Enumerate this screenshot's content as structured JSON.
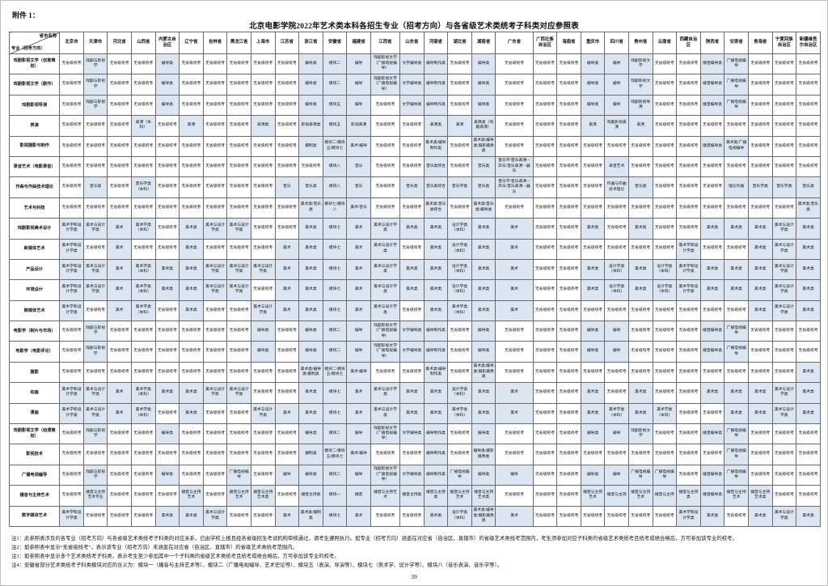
{
  "header": {
    "attachment": "附件 1：",
    "title": "北京电影学院2022年艺术类本科各招生专业（招考方向）与各省级艺术类统考子科类对应参照表"
  },
  "colors": {
    "highlight_cell": "#dbe6f2",
    "grid_line": "#6b6b6b"
  },
  "page_number": "39",
  "table": {
    "corner_top": "省市名称",
    "corner_bottom": "专业（招考方向）",
    "none_label": "无省级统考",
    "provinces": [
      "北京市",
      "天津市",
      "河北省",
      "山西省",
      "内蒙古自治区",
      "辽宁省",
      "吉林省",
      "黑龙江省",
      "上海市",
      "江苏省",
      "浙江省",
      "安徽省",
      "福建省",
      "江西省",
      "山东省",
      "河南省",
      "湖北省",
      "湖南省",
      "广东省",
      "广西壮族自治区",
      "海南省",
      "重庆市",
      "四川省",
      "贵州省",
      "云南省",
      "西藏自治区",
      "陕西省",
      "甘肃省",
      "青海省",
      "宁夏回族自治区",
      "新疆维吾尔自治区"
    ],
    "rows": [
      {
        "major": "戏剧影视文学（创意策划）",
        "cells": [
          "无省级统考",
          "戏剧与影视学",
          "无省级统考",
          "无省级统考",
          "编导类",
          "无省级统考",
          "无省级统考",
          "无省级统考",
          "无省级统考",
          "无省级统考",
          "编导类",
          "模块二",
          "编导",
          "戏剧影视文学（广播电视编导）",
          "文学编导类",
          "编导制作类",
          "无省级统考",
          "编导类",
          "无省级统考",
          "无省级统考",
          "无省级统考",
          "编导类",
          "编导",
          "戏剧影视文学",
          "无省级统考",
          "无省级统考",
          "播音编导类",
          "广播电视编导",
          "无省级统考",
          "无省级统考",
          "无省级统考"
        ]
      },
      {
        "major": "戏剧影视文学（剧作）",
        "cells": [
          "无省级统考",
          "戏剧与影视学",
          "无省级统考",
          "无省级统考",
          "编导类",
          "无省级统考",
          "无省级统考",
          "无省级统考",
          "无省级统考",
          "无省级统考",
          "编导类",
          "模块二",
          "编导",
          "戏剧影视文学（广播电视编导）",
          "文学编导类",
          "编导制作类",
          "无省级统考",
          "编导类",
          "无省级统考",
          "无省级统考",
          "无省级统考",
          "编导类",
          "编导",
          "戏剧影视文学",
          "无省级统考",
          "无省级统考",
          "播音编导类",
          "广播电视编导",
          "无省级统考",
          "无省级统考",
          "无省级统考"
        ]
      },
      {
        "major": "戏剧影视导演",
        "cells": [
          "无省级统考",
          "戏剧与影视学",
          "无省级统考",
          "无省级统考",
          "编导类",
          "无省级统考",
          "无省级统考",
          "无省级统考",
          "无省级统考",
          "无省级统考",
          "编导类",
          "模块五",
          "编导",
          "无省级统考",
          "文学编导类",
          "编导制作类",
          "无省级统考",
          "编导类",
          "无省级统考",
          "无省级统考",
          "无省级统考",
          "编导类",
          "编导",
          "戏剧影视导演",
          "无省级统考",
          "无省级统考",
          "播音编导类",
          "广播电视编导",
          "无省级统考",
          "无省级统考",
          "无省级统考"
        ]
      },
      {
        "major": "表演",
        "cells": [
          "无省级统考",
          "无省级统考",
          "无省级统考",
          "表演（本科）",
          "无省级统考",
          "表演",
          "无省级统考",
          "无省级统考",
          "表演类",
          "无省级统考",
          "影视表演类",
          "模块五",
          "影视表演",
          "无省级统考",
          "无省级统考",
          "表演类",
          "表演",
          "表演类（戏剧表演）",
          "无省级统考",
          "无省级统考",
          "无省级统考",
          "表演",
          "戏剧影视表演",
          "表演",
          "无省级统考",
          "无省级统考",
          "无省级统考",
          "无省级统考",
          "无省级统考",
          "无省级统考",
          "无省级统考"
        ]
      },
      {
        "major": "影视摄影与制作",
        "cells": [
          "无省级统考",
          "无省级统考",
          "无省级统考",
          "无省级统考",
          "无省级统考",
          "无省级统考",
          "无省级统考",
          "无省级统考",
          "无省级统考",
          "无省级统考",
          "摄制类",
          "模块二/模块五/模块七",
          "美术/编导",
          "无省级统考",
          "无省级统考",
          "美术类/编导制作类",
          "无省级统考",
          "美术类/编导类/摄影摄像类",
          "无省级统考",
          "无省级统考",
          "无省级统考",
          "无省级统考",
          "无省级统考",
          "无省级统考",
          "无省级统考",
          "无省级统考",
          "播音编导类",
          "美术类/广播电视编导",
          "无省级统考",
          "无省级统考",
          "无省级统考"
        ]
      },
      {
        "major": "录音艺术（电影录音）",
        "cells": [
          "无省级统考",
          "无省级统考",
          "无省级统考",
          "无省级统考",
          "无省级统考",
          "无省级统考",
          "无省级统考",
          "无省级统考",
          "无省级统考",
          "无省级统考",
          "无省级统考",
          "模块八",
          "音乐",
          "无省级统考",
          "无省级统考",
          "音乐类综合",
          "无省级统考",
          "音乐类",
          "音乐学/音乐表演—声乐/音乐表演—器乐",
          "无省级统考",
          "无省级统考",
          "无省级统考",
          "录音艺术",
          "无省级统考",
          "无省级统考",
          "无省级统考",
          "无省级统考",
          "无省级统考",
          "无省级统考",
          "无省级统考",
          "无省级统考"
        ]
      },
      {
        "major": "作曲与作曲技术理论",
        "cells": [
          "无省级统考",
          "音乐类",
          "无省级统考",
          "音乐学类（本科）",
          "无省级统考",
          "无省级统考",
          "无省级统考",
          "无省级统考",
          "无省级统考",
          "音乐",
          "音乐类",
          "模块八",
          "音乐",
          "无省级统考",
          "音乐类",
          "音乐类综合",
          "音乐学类",
          "音乐类",
          "音乐学/音乐表演—声乐/音乐表演—器乐",
          "无省级统考",
          "无省级统考",
          "无省级统考",
          "作曲与作曲技术理论",
          "音乐类",
          "无省级统考",
          "无省级统考",
          "无省级统考",
          "理论作曲",
          "音乐学类",
          "音乐学类",
          "音乐类"
        ]
      },
      {
        "major": "艺术与科技",
        "cells": [
          "无省级统考",
          "无省级统考",
          "无省级统考",
          "无省级统考",
          "无省级统考",
          "无省级统考",
          "无省级统考",
          "无省级统考",
          "无省级统考",
          "无省级统考",
          "美术类/音乐类",
          "模块七/模块八",
          "美术/音乐",
          "无省级统考",
          "无省级统考",
          "美术类/音乐类综合",
          "无省级统考",
          "美术类/音乐类/编导类",
          "无省级统考",
          "无省级统考",
          "无省级统考",
          "无省级统考",
          "无省级统考",
          "无省级统考",
          "无省级统考",
          "无省级统考",
          "无省级统考",
          "无省级统考",
          "无省级统考",
          "无省级统考",
          "美术类/音乐类"
        ]
      },
      {
        "major": "戏剧影视美术设计",
        "cells": [
          "美术学和设计学类",
          "美术与设计学类",
          "美术",
          "美术学类（本科）",
          "无省级统考",
          "美术类",
          "美术与设计学类",
          "美术与设计学类",
          "无省级统考",
          "无省级统考",
          "美术类",
          "模块七",
          "美术",
          "美术与设计学类",
          "美术类",
          "美术类",
          "设计学类（本科）",
          "美术类",
          "美术",
          "无省级统考",
          "无省级统考",
          "美术类",
          "无省级统考",
          "美术类",
          "无省级统考",
          "无省级统考",
          "美术类",
          "美术类",
          "美术类",
          "美术与设计学类",
          "美术类"
        ]
      },
      {
        "major": "新媒体艺术",
        "cells": [
          "美术学和设计学类",
          "无省级统考",
          "美术",
          "无省级统考",
          "无省级统考",
          "美术类",
          "无省级统考",
          "无省级统考",
          "无省级统考",
          "美术",
          "美术类",
          "模块七",
          "美术",
          "美术与设计学类",
          "无省级统考",
          "美术类",
          "设计学类（本科）",
          "美术类",
          "美术",
          "无省级统考",
          "无省级统考",
          "无省级统考",
          "无省级统考",
          "无省级统考",
          "无省级统考",
          "美术学和设计学类",
          "无省级统考",
          "无省级统考",
          "美术类",
          "美术与设计学类",
          "美术类"
        ]
      },
      {
        "major": "产品设计",
        "cells": [
          "美术学和设计学类",
          "美术与设计学类",
          "美术",
          "美术学类（本科）",
          "美术类",
          "美术类",
          "美术与设计学类",
          "美术与设计学类",
          "美术与设计学类",
          "美术",
          "美术类",
          "模块七",
          "美术",
          "美术与设计学类",
          "美术类",
          "美术类",
          "设计学类（本科）",
          "美术类",
          "美术",
          "无省级统考",
          "无省级统考",
          "美术类",
          "设计学类（本科）",
          "美术类",
          "设计学类（本科）",
          "美术学和设计学类",
          "美术类",
          "美术类",
          "美术类",
          "美术与设计学类",
          "美术类"
        ]
      },
      {
        "major": "环境设计",
        "cells": [
          "美术学和设计学类",
          "美术与设计学类",
          "美术",
          "美术学类（本科）",
          "美术类",
          "美术类",
          "美术与设计学类",
          "美术与设计学类",
          "无省级统考",
          "美术",
          "美术类",
          "模块七",
          "美术",
          "美术与设计学类",
          "美术类",
          "美术类",
          "设计学类（本科）",
          "美术类",
          "美术",
          "无省级统考",
          "无省级统考",
          "美术类",
          "设计学类（本科）",
          "美术类",
          "设计学类（本科）",
          "美术学和设计学类",
          "美术类",
          "美术类",
          "美术类",
          "美术与设计学类",
          "美术类"
        ]
      },
      {
        "major": "跨媒体艺术",
        "cells": [
          "美术学和设计学类",
          "无省级统考",
          "美术",
          "美术学类（本科）",
          "无省级统考",
          "美术类",
          "无省级统考",
          "无省级统考",
          "美术与设计学类",
          "美术",
          "美术类",
          "模块七",
          "美术",
          "美术与设计学类",
          "无省级统考",
          "美术类",
          "美术学类（本科）",
          "美术类",
          "美术",
          "无省级统考",
          "无省级统考",
          "无省级统考",
          "无省级统考",
          "无省级统考",
          "无省级统考",
          "无省级统考",
          "无省级统考",
          "无省级统考",
          "美术类",
          "美术与设计学类",
          "美术类"
        ]
      },
      {
        "major": "电影学（制片与市场）",
        "cells": [
          "无省级统考",
          "戏剧与影视学",
          "无省级统考",
          "无省级统考",
          "无省级统考",
          "无省级统考",
          "无省级统考",
          "无省级统考",
          "编导类",
          "无省级统考",
          "编导类",
          "模块二",
          "编导",
          "戏剧影视文学（广播电视编导）",
          "文学编导类",
          "编导制作类",
          "无省级统考",
          "编导类",
          "无省级统考",
          "无省级统考",
          "无省级统考",
          "编导类",
          "编导",
          "无省级统考",
          "无省级统考",
          "无省级统考",
          "播音编导类",
          "广播电视编导",
          "无省级统考",
          "无省级统考",
          "无省级统考"
        ]
      },
      {
        "major": "电影学（电影评论）",
        "cells": [
          "无省级统考",
          "戏剧与影视学",
          "无省级统考",
          "无省级统考",
          "无省级统考",
          "无省级统考",
          "无省级统考",
          "无省级统考",
          "编导类",
          "无省级统考",
          "编导类",
          "模块二",
          "编导",
          "戏剧影视文学（广播电视编导）",
          "文学编导类",
          "编导制作类",
          "无省级统考",
          "编导类",
          "无省级统考",
          "无省级统考",
          "无省级统考",
          "编导类",
          "编导",
          "无省级统考",
          "无省级统考",
          "无省级统考",
          "播音编导类",
          "广播电视编导",
          "无省级统考",
          "无省级统考",
          "无省级统考"
        ]
      },
      {
        "major": "摄影",
        "cells": [
          "无省级统考",
          "无省级统考",
          "无省级统考",
          "无省级统考",
          "无省级统考",
          "无省级统考",
          "无省级统考",
          "无省级统考",
          "无省级统考",
          "无省级统考",
          "美术类/编导类/摄制类",
          "模块二/模块五/模块七",
          "美术/编导",
          "无省级统考",
          "无省级统考",
          "美术类/编导制作类",
          "无省级统考",
          "美术类/编导类/摄影摄像类",
          "无省级统考",
          "无省级统考",
          "无省级统考",
          "无省级统考",
          "无省级统考",
          "无省级统考",
          "无省级统考",
          "无省级统考",
          "无省级统考",
          "无省级统考",
          "无省级统考",
          "无省级统考",
          "美术类"
        ]
      },
      {
        "major": "动画",
        "cells": [
          "美术学和设计学类",
          "美术与设计学类",
          "美术",
          "美术学类（本科）",
          "美术类",
          "美术类",
          "美术与设计学类",
          "美术与设计学类",
          "无省级统考",
          "无省级统考",
          "美术类",
          "模块七",
          "美术",
          "美术与设计学类",
          "美术类",
          "美术类",
          "设计学类（本科）",
          "美术类",
          "美术",
          "无省级统考",
          "无省级统考",
          "美术类",
          "无省级统考",
          "美术类",
          "无省级统考",
          "无省级统考",
          "美术类",
          "美术类",
          "美术类",
          "美术与设计学类",
          "美术类"
        ]
      },
      {
        "major": "漫画",
        "cells": [
          "美术学和设计学类",
          "美术与设计学类",
          "美术",
          "美术学类（本科）",
          "无省级统考",
          "美术类",
          "无省级统考",
          "无省级统考",
          "美术与设计学类",
          "美术",
          "美术类",
          "模块七",
          "美术",
          "美术与设计学类",
          "美术类",
          "美术类",
          "美术学类（本科）",
          "美术类",
          "美术",
          "无省级统考",
          "无省级统考",
          "美术类",
          "美术学类（本科）",
          "美术类",
          "美术学类（本科）",
          "无省级统考",
          "无省级统考",
          "美术类",
          "美术类",
          "美术与设计学类",
          "美术类"
        ]
      },
      {
        "major": "戏剧影视文学（动漫策划）",
        "cells": [
          "无省级统考",
          "戏剧与影视学",
          "无省级统考",
          "无省级统考",
          "编导类",
          "无省级统考",
          "无省级统考",
          "无省级统考",
          "无省级统考",
          "无省级统考",
          "编导类",
          "模块二",
          "编导",
          "戏剧影视文学（广播电视编导）",
          "文学编导类",
          "编导制作类",
          "无省级统考",
          "编导类",
          "无省级统考",
          "无省级统考",
          "无省级统考",
          "编导类",
          "编导",
          "戏剧影视文学",
          "无省级统考",
          "无省级统考",
          "播音编导类",
          "广播电视编导",
          "无省级统考",
          "无省级统考",
          "无省级统考"
        ]
      },
      {
        "major": "影视技术",
        "cells": [
          "无省级统考",
          "无省级统考",
          "无省级统考",
          "无省级统考",
          "无省级统考",
          "无省级统考",
          "无省级统考",
          "无省级统考",
          "无省级统考",
          "无省级统考",
          "摄制类",
          "模块二/模块五/模块七",
          "美术/编导",
          "无省级统考",
          "无省级统考",
          "编导制作类",
          "无省级统考",
          "编导类/摄影摄像类",
          "无省级统考",
          "无省级统考",
          "无省级统考",
          "无省级统考",
          "无省级统考",
          "无省级统考",
          "无省级统考",
          "无省级统考",
          "无省级统考",
          "广播电视编导",
          "无省级统考",
          "无省级统考",
          "无省级统考"
        ]
      },
      {
        "major": "广播电视编导",
        "cells": [
          "无省级统考",
          "戏剧与影视学",
          "无省级统考",
          "无省级统考",
          "编导类",
          "无省级统考",
          "无省级统考",
          "广播电视编导",
          "无省级统考",
          "编导",
          "编导类",
          "模块二",
          "编导",
          "戏剧影视文学（广播电视编导）",
          "文学编导类",
          "编导制作类",
          "广播电视编导",
          "编导类",
          "编导",
          "无省级统考",
          "无省级统考",
          "编导类",
          "编导",
          "广播电视编导",
          "广播电视编导",
          "无省级统考",
          "播音编导类",
          "广播电视编导",
          "无省级统考",
          "无省级统考",
          "无省级统考"
        ]
      },
      {
        "major": "播音与主持艺术",
        "cells": [
          "无省级统考",
          "播音与主持艺术专业",
          "无省级统考",
          "无省级统考",
          "无省级统考",
          "播音与主持艺术",
          "无省级统考",
          "播音与主持艺术",
          "播音与主持艺术类",
          "无省级统考",
          "播音主持类",
          "模块一",
          "播音",
          "播音与主持艺术",
          "播音主持类",
          "播音与主持类",
          "播音与主持艺术",
          "播音与主持艺术类",
          "无省级统考",
          "无省级统考",
          "无省级统考",
          "播音与主持艺术",
          "播音与主持",
          "播音与主持艺术",
          "播音与主持",
          "播音与主持类",
          "播音编导类",
          "播音与主持艺术",
          "播音与主持艺术类",
          "无省级统考",
          "无省级统考"
        ]
      },
      {
        "major": "数字媒体艺术",
        "cells": [
          "美术学和设计学类",
          "无省级统考",
          "无省级统考",
          "无省级统考",
          "美术类",
          "美术类",
          "美术与设计学类",
          "无省级统考",
          "无省级统考",
          "美术",
          "美术类/摄制类",
          "模块七",
          "美术",
          "无省级统考",
          "无省级统考",
          "美术类",
          "设计学类（本科）",
          "美术类/编导类/摄影摄像类",
          "美术",
          "无省级统考",
          "无省级统考",
          "无省级统考",
          "无省级统考",
          "无省级统考",
          "无省级统考",
          "美术学和设计学类",
          "美术类",
          "无省级统考",
          "美术类",
          "美术与设计学类",
          "美术类"
        ]
      }
    ]
  },
  "notes": [
    "注1：此参照表涉及的各专业（招考方向）与各省级艺术类统考子科类的对应关系，已由学校上报且经各省级招生考试机构审核通过，请考生遵照执行。如专业（招考方向）涵盖在对应省（自治区、直辖市）的省级艺术类统考范围内，考生须参加对应子科类的省级艺术类统考且统考成绩合格后，方可参加该专业的校考。",
    "注2：如参照表中显示“无省级统考”，表示该专业（招考方向）未涵盖在对应省（自治区、直辖市）的省级艺术类统考范围内。",
    "注3：如参照表中显示多个艺术类统考子科类，表示考生至少参加其中一个子科类的省级艺术类统考且统考成绩合格后，方可参加该专业的校考。",
    "注4：安徽省部分艺术类统考子科类模块对应的含义为：模块一（播音与主持艺术等）、模块二（广播电视编导、艺术史论等）、模块五（表演、导演等）、模块七（美术学、设计学等）、模块八（音乐表演、音乐学等）。"
  ]
}
